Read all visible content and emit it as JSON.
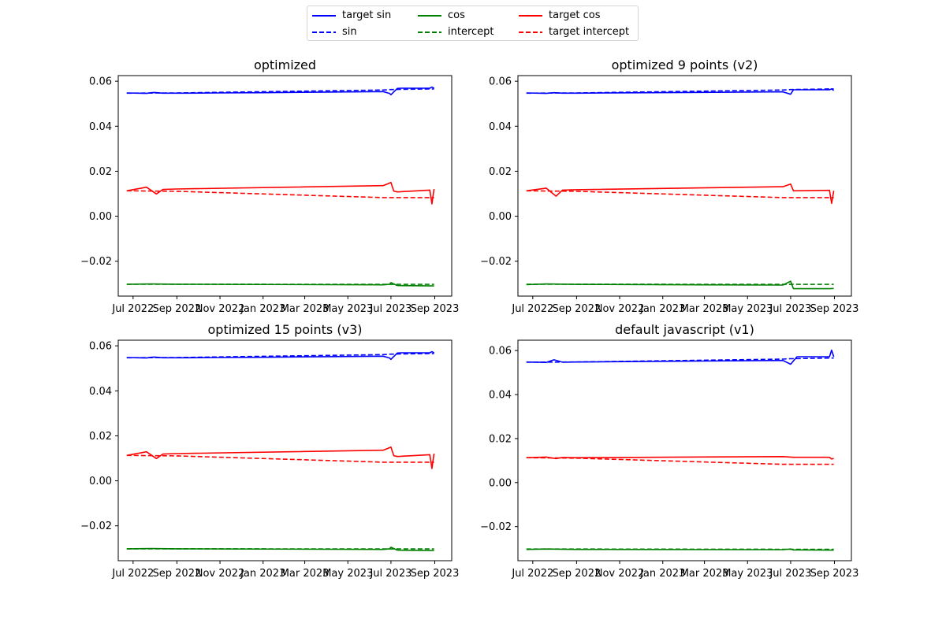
{
  "legend": {
    "items": [
      {
        "label": "target sin",
        "color": "#0000ff",
        "style": "solid"
      },
      {
        "label": "sin",
        "color": "#0000ff",
        "style": "dashed"
      },
      {
        "label": "cos",
        "color": "#008000",
        "style": "solid"
      },
      {
        "label": "intercept",
        "color": "#008000",
        "style": "dashed"
      },
      {
        "label": "target cos",
        "color": "#ff0000",
        "style": "solid"
      },
      {
        "label": "target intercept",
        "color": "#ff0000",
        "style": "dashed"
      }
    ]
  },
  "chart_data": [
    {
      "type": "line",
      "title": "optimized",
      "x_ticks": [
        "Jul 2022",
        "Sep 2022",
        "Nov 2022",
        "Jan 2023",
        "Mar 2023",
        "May 2023",
        "Jul 2023",
        "Sep 2023"
      ],
      "y_ticks": [
        "0.06",
        "0.04",
        "0.02",
        "0.00",
        "−0.02"
      ],
      "xlim": [
        "2022-06-10",
        "2023-09-25"
      ],
      "ylim": [
        -0.0355,
        0.0625
      ],
      "series": [
        {
          "name": "target sin",
          "color": "#0000ff",
          "dash": false,
          "x": [
            "2022-06-22",
            "2022-07-08",
            "2022-07-20",
            "2022-07-27",
            "2022-07-31",
            "2022-08-12",
            "2022-08-31",
            "2022-09-15",
            "2022-10-31",
            "2023-01-01",
            "2023-04-01",
            "2023-06-20",
            "2023-06-29",
            "2023-07-01",
            "2023-07-10",
            "2023-07-15",
            "2023-08-25",
            "2023-08-28",
            "2023-08-31"
          ],
          "y": [
            0.0548,
            0.0547,
            0.0546,
            0.0549,
            0.055,
            0.0547,
            0.0547,
            0.0547,
            0.0548,
            0.0549,
            0.0552,
            0.0554,
            0.0546,
            0.054,
            0.0568,
            0.0569,
            0.0569,
            0.0574,
            0.0569
          ]
        },
        {
          "name": "sin",
          "color": "#0000ff",
          "dash": true,
          "x": [
            "2022-06-22",
            "2022-08-31",
            "2023-06-20",
            "2023-07-01",
            "2023-08-31"
          ],
          "y": [
            0.0547,
            0.0548,
            0.0561,
            0.0563,
            0.0566
          ]
        },
        {
          "name": "cos",
          "color": "#008000",
          "dash": false,
          "x": [
            "2022-06-22",
            "2022-07-27",
            "2022-08-31",
            "2023-06-20",
            "2023-06-29",
            "2023-07-01",
            "2023-07-10",
            "2023-08-31"
          ],
          "y": [
            -0.0302,
            -0.0301,
            -0.0302,
            -0.0305,
            -0.0302,
            -0.0295,
            -0.0308,
            -0.031
          ]
        },
        {
          "name": "intercept",
          "color": "#008000",
          "dash": true,
          "x": [
            "2022-06-22",
            "2022-08-31",
            "2023-06-20",
            "2023-08-31"
          ],
          "y": [
            -0.0302,
            -0.0302,
            -0.0303,
            -0.0303
          ]
        },
        {
          "name": "target cos",
          "color": "#ff0000",
          "dash": false,
          "x": [
            "2022-06-22",
            "2022-07-20",
            "2022-08-03",
            "2022-08-12",
            "2022-08-31",
            "2023-06-20",
            "2023-07-01",
            "2023-07-05",
            "2023-07-10",
            "2023-08-25",
            "2023-08-28",
            "2023-08-31"
          ],
          "y": [
            0.0113,
            0.0129,
            0.0099,
            0.0119,
            0.0121,
            0.0136,
            0.015,
            0.0112,
            0.0108,
            0.0116,
            0.0055,
            0.0121
          ]
        },
        {
          "name": "target intercept",
          "color": "#ff0000",
          "dash": true,
          "x": [
            "2022-06-22",
            "2022-08-31",
            "2023-06-20",
            "2023-08-31"
          ],
          "y": [
            0.0113,
            0.0111,
            0.0083,
            0.0083
          ]
        }
      ]
    },
    {
      "type": "line",
      "title": "optimized 9 points (v2)",
      "x_ticks": [
        "Jul 2022",
        "Sep 2022",
        "Nov 2022",
        "Jan 2023",
        "Mar 2023",
        "May 2023",
        "Jul 2023",
        "Sep 2023"
      ],
      "y_ticks": [
        "0.06",
        "0.04",
        "0.02",
        "0.00",
        "−0.02"
      ],
      "xlim": [
        "2022-06-10",
        "2023-09-25"
      ],
      "ylim": [
        -0.0355,
        0.0625
      ],
      "series": [
        {
          "name": "target sin",
          "color": "#0000ff",
          "dash": false,
          "x": [
            "2022-06-22",
            "2022-07-20",
            "2022-07-31",
            "2022-08-12",
            "2022-08-31",
            "2023-06-20",
            "2023-07-01",
            "2023-07-05",
            "2023-08-25",
            "2023-08-28",
            "2023-08-31"
          ],
          "y": [
            0.0548,
            0.0546,
            0.0549,
            0.0547,
            0.0547,
            0.0553,
            0.0542,
            0.0562,
            0.0562,
            0.0566,
            0.0559
          ]
        },
        {
          "name": "sin",
          "color": "#0000ff",
          "dash": true,
          "x": [
            "2022-06-22",
            "2022-08-31",
            "2023-06-20",
            "2023-07-01",
            "2023-08-31"
          ],
          "y": [
            0.0547,
            0.0548,
            0.0561,
            0.0563,
            0.0566
          ]
        },
        {
          "name": "cos",
          "color": "#008000",
          "dash": false,
          "x": [
            "2022-06-22",
            "2022-07-20",
            "2022-08-31",
            "2023-06-20",
            "2023-07-01",
            "2023-07-05",
            "2023-08-25",
            "2023-08-31"
          ],
          "y": [
            -0.0304,
            -0.0301,
            -0.0303,
            -0.0306,
            -0.0289,
            -0.0322,
            -0.0322,
            -0.0321
          ]
        },
        {
          "name": "intercept",
          "color": "#008000",
          "dash": true,
          "x": [
            "2022-06-22",
            "2022-08-31",
            "2023-06-20",
            "2023-08-31"
          ],
          "y": [
            -0.0302,
            -0.0302,
            -0.0303,
            -0.0303
          ]
        },
        {
          "name": "target cos",
          "color": "#ff0000",
          "dash": false,
          "x": [
            "2022-06-22",
            "2022-07-20",
            "2022-08-03",
            "2022-08-12",
            "2022-08-31",
            "2023-06-20",
            "2023-07-01",
            "2023-07-05",
            "2023-08-25",
            "2023-08-28",
            "2023-08-31"
          ],
          "y": [
            0.0113,
            0.0125,
            0.0089,
            0.0116,
            0.0118,
            0.0131,
            0.0143,
            0.0113,
            0.0115,
            0.0057,
            0.0113
          ]
        },
        {
          "name": "target intercept",
          "color": "#ff0000",
          "dash": true,
          "x": [
            "2022-06-22",
            "2022-08-31",
            "2023-06-20",
            "2023-08-31"
          ],
          "y": [
            0.0113,
            0.0111,
            0.0083,
            0.0083
          ]
        }
      ]
    },
    {
      "type": "line",
      "title": "optimized 15 points (v3)",
      "x_ticks": [
        "Jul 2022",
        "Sep 2022",
        "Nov 2022",
        "Jan 2023",
        "Mar 2023",
        "May 2023",
        "Jul 2023",
        "Sep 2023"
      ],
      "y_ticks": [
        "0.06",
        "0.04",
        "0.02",
        "0.00",
        "−0.02"
      ],
      "xlim": [
        "2022-06-10",
        "2023-09-25"
      ],
      "ylim": [
        -0.0355,
        0.0625
      ],
      "series": [
        {
          "name": "target sin",
          "color": "#0000ff",
          "dash": false,
          "x": [
            "2022-06-22",
            "2022-07-08",
            "2022-07-20",
            "2022-07-27",
            "2022-07-31",
            "2022-08-12",
            "2022-08-31",
            "2022-09-15",
            "2022-10-31",
            "2023-01-01",
            "2023-04-01",
            "2023-06-20",
            "2023-06-29",
            "2023-07-01",
            "2023-07-10",
            "2023-07-15",
            "2023-08-25",
            "2023-08-28",
            "2023-08-31"
          ],
          "y": [
            0.0548,
            0.0547,
            0.0546,
            0.0549,
            0.055,
            0.0547,
            0.0547,
            0.0547,
            0.0548,
            0.0549,
            0.0552,
            0.0554,
            0.0546,
            0.054,
            0.0568,
            0.0569,
            0.0569,
            0.0574,
            0.0569
          ]
        },
        {
          "name": "sin",
          "color": "#0000ff",
          "dash": true,
          "x": [
            "2022-06-22",
            "2022-08-31",
            "2023-06-20",
            "2023-07-01",
            "2023-08-31"
          ],
          "y": [
            0.0547,
            0.0548,
            0.0561,
            0.0563,
            0.0566
          ]
        },
        {
          "name": "cos",
          "color": "#008000",
          "dash": false,
          "x": [
            "2022-06-22",
            "2022-07-27",
            "2022-08-31",
            "2023-06-20",
            "2023-06-29",
            "2023-07-01",
            "2023-07-10",
            "2023-08-31"
          ],
          "y": [
            -0.0302,
            -0.0301,
            -0.0302,
            -0.0305,
            -0.0302,
            -0.0295,
            -0.0308,
            -0.031
          ]
        },
        {
          "name": "intercept",
          "color": "#008000",
          "dash": true,
          "x": [
            "2022-06-22",
            "2022-08-31",
            "2023-06-20",
            "2023-08-31"
          ],
          "y": [
            -0.0302,
            -0.0302,
            -0.0303,
            -0.0303
          ]
        },
        {
          "name": "target cos",
          "color": "#ff0000",
          "dash": false,
          "x": [
            "2022-06-22",
            "2022-07-20",
            "2022-08-03",
            "2022-08-12",
            "2022-08-31",
            "2023-06-20",
            "2023-07-01",
            "2023-07-05",
            "2023-07-10",
            "2023-08-25",
            "2023-08-28",
            "2023-08-31"
          ],
          "y": [
            0.0113,
            0.0129,
            0.0099,
            0.0119,
            0.0121,
            0.0136,
            0.015,
            0.0112,
            0.0108,
            0.0116,
            0.0055,
            0.0121
          ]
        },
        {
          "name": "target intercept",
          "color": "#ff0000",
          "dash": true,
          "x": [
            "2022-06-22",
            "2022-08-31",
            "2023-06-20",
            "2023-08-31"
          ],
          "y": [
            0.0113,
            0.0111,
            0.0083,
            0.0083
          ]
        }
      ]
    },
    {
      "type": "line",
      "title": "default javascript (v1)",
      "x_ticks": [
        "Jul 2022",
        "Sep 2022",
        "Nov 2022",
        "Jan 2023",
        "Mar 2023",
        "May 2023",
        "Jul 2023",
        "Sep 2023"
      ],
      "y_ticks": [
        "0.06",
        "0.04",
        "0.02",
        "0.00",
        "−0.02"
      ],
      "xlim": [
        "2022-06-10",
        "2023-09-25"
      ],
      "ylim": [
        -0.0355,
        0.0647
      ],
      "series": [
        {
          "name": "target sin",
          "color": "#0000ff",
          "dash": false,
          "x": [
            "2022-06-22",
            "2022-07-20",
            "2022-07-31",
            "2022-08-12",
            "2022-08-31",
            "2023-06-20",
            "2023-07-01",
            "2023-07-10",
            "2023-08-25",
            "2023-08-28",
            "2023-08-31"
          ],
          "y": [
            0.0548,
            0.0546,
            0.0558,
            0.0547,
            0.0548,
            0.0555,
            0.0538,
            0.0572,
            0.0572,
            0.0602,
            0.0572
          ]
        },
        {
          "name": "sin",
          "color": "#0000ff",
          "dash": true,
          "x": [
            "2022-06-22",
            "2022-08-31",
            "2023-06-20",
            "2023-07-01",
            "2023-08-31"
          ],
          "y": [
            0.0547,
            0.0548,
            0.0561,
            0.0563,
            0.0566
          ]
        },
        {
          "name": "cos",
          "color": "#008000",
          "dash": false,
          "x": [
            "2022-06-22",
            "2022-07-20",
            "2022-08-31",
            "2023-06-20",
            "2023-07-01",
            "2023-07-05",
            "2023-08-31"
          ],
          "y": [
            -0.0304,
            -0.0302,
            -0.0304,
            -0.0305,
            -0.0302,
            -0.0306,
            -0.0307
          ]
        },
        {
          "name": "intercept",
          "color": "#008000",
          "dash": true,
          "x": [
            "2022-06-22",
            "2022-08-31",
            "2023-06-20",
            "2023-08-31"
          ],
          "y": [
            -0.0302,
            -0.0302,
            -0.0303,
            -0.0303
          ]
        },
        {
          "name": "target cos",
          "color": "#ff0000",
          "dash": false,
          "x": [
            "2022-06-22",
            "2022-07-20",
            "2022-08-03",
            "2022-08-12",
            "2022-08-31",
            "2023-06-20",
            "2023-07-01",
            "2023-07-05",
            "2023-08-25",
            "2023-08-28",
            "2023-08-31"
          ],
          "y": [
            0.0113,
            0.0116,
            0.0109,
            0.0114,
            0.0113,
            0.0118,
            0.0116,
            0.0115,
            0.0115,
            0.0107,
            0.011
          ]
        },
        {
          "name": "target intercept",
          "color": "#ff0000",
          "dash": true,
          "x": [
            "2022-06-22",
            "2022-08-31",
            "2023-06-20",
            "2023-08-31"
          ],
          "y": [
            0.0113,
            0.0111,
            0.0083,
            0.0083
          ]
        }
      ]
    }
  ]
}
